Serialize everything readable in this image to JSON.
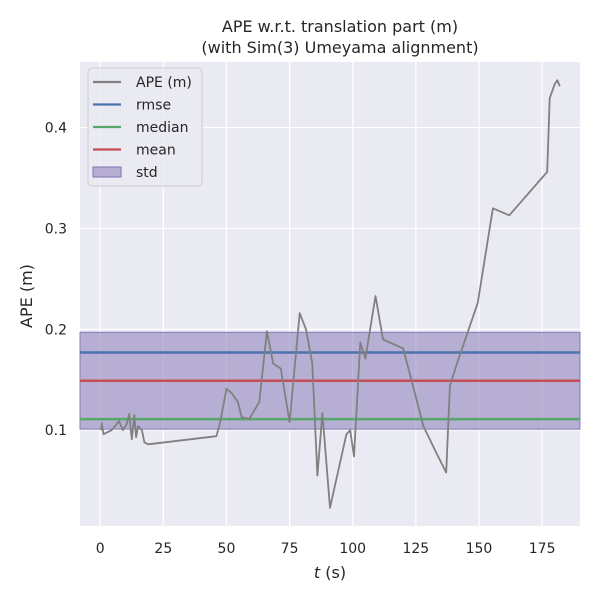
{
  "chart_data": {
    "type": "line",
    "title": "APE w.r.t. translation part (m)",
    "subtitle": "(with Sim(3) Umeyama alignment)",
    "xlabel_italic": "t",
    "xlabel_rest": " (s)",
    "ylabel": "APE (m)",
    "xlim": [
      -8,
      190
    ],
    "ylim": [
      0.005,
      0.465
    ],
    "xticks": [
      {
        "value": 0,
        "label": "0"
      },
      {
        "value": 25,
        "label": "25"
      },
      {
        "value": 50,
        "label": "50"
      },
      {
        "value": 75,
        "label": "75"
      },
      {
        "value": 100,
        "label": "100"
      },
      {
        "value": 125,
        "label": "125"
      },
      {
        "value": 150,
        "label": "150"
      },
      {
        "value": 175,
        "label": "175"
      }
    ],
    "yticks": [
      {
        "value": 0.1,
        "label": "0.1"
      },
      {
        "value": 0.2,
        "label": "0.2"
      },
      {
        "value": 0.3,
        "label": "0.3"
      },
      {
        "value": 0.4,
        "label": "0.4"
      }
    ],
    "grid": true,
    "legend_position": "top-left",
    "legend": [
      {
        "label": "APE (m)",
        "kind": "line",
        "color": "#808080"
      },
      {
        "label": "rmse",
        "kind": "line",
        "color": "#4c72b0"
      },
      {
        "label": "median",
        "kind": "line",
        "color": "#55a868"
      },
      {
        "label": "mean",
        "kind": "line",
        "color": "#c44e52"
      },
      {
        "label": "std",
        "kind": "patch",
        "color": "#8172b3"
      }
    ],
    "series": [
      {
        "name": "APE (m)",
        "color": "#808080",
        "x": [
          0.3,
          0.6,
          1.3,
          4.5,
          7.5,
          9,
          10.5,
          11.5,
          12.5,
          13.5,
          14.2,
          15,
          16.5,
          17.5,
          19,
          46,
          47.5,
          50,
          52,
          54.5,
          56,
          59,
          63,
          66,
          68.5,
          71.5,
          75,
          79,
          81.5,
          84,
          86,
          88,
          91,
          97.5,
          99,
          100.5,
          103,
          105,
          109,
          112,
          120,
          128,
          133,
          137,
          138.5,
          141,
          149.5,
          155.5,
          162,
          177,
          178,
          180,
          181,
          182
        ],
        "values": [
          0.1,
          0.107,
          0.096,
          0.1,
          0.109,
          0.1,
          0.106,
          0.116,
          0.091,
          0.115,
          0.093,
          0.104,
          0.1,
          0.088,
          0.086,
          0.094,
          0.108,
          0.141,
          0.137,
          0.128,
          0.113,
          0.111,
          0.128,
          0.198,
          0.166,
          0.161,
          0.108,
          0.216,
          0.2,
          0.166,
          0.055,
          0.117,
          0.023,
          0.096,
          0.1,
          0.074,
          0.187,
          0.171,
          0.233,
          0.19,
          0.181,
          0.104,
          0.078,
          0.058,
          0.144,
          0.164,
          0.226,
          0.32,
          0.313,
          0.356,
          0.429,
          0.443,
          0.447,
          0.441
        ]
      }
    ],
    "stats": {
      "rmse": 0.177,
      "median": 0.111,
      "mean": 0.149,
      "std": 0.048
    },
    "colors": {
      "axes_bg": "#eaeaf2",
      "grid": "#ffffff",
      "std_fill": "#8172b3"
    }
  }
}
